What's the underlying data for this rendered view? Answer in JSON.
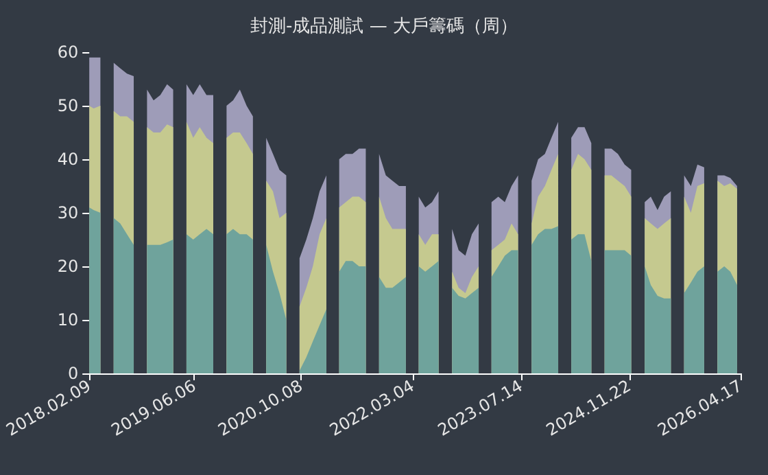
{
  "chart_data": {
    "type": "area",
    "title": "封測-成品測試 — 大戶籌碼（周）",
    "stacked": true,
    "grid": false,
    "x": [
      "2018-02-09",
      "2018-03",
      "2018-04",
      "2018-05",
      "2018-06",
      "2018-07",
      "2018-08",
      "2018-09",
      "2018-10",
      "2018-11",
      "2018-12",
      "2019-01",
      "2019-02",
      "2019-03",
      "2019-04",
      "2019-05",
      "2019-06",
      "2019-07",
      "2019-08",
      "2019-09",
      "2019-10",
      "2019-11",
      "2019-12",
      "2020-01",
      "2020-02",
      "2020-03",
      "2020-04",
      "2020-05",
      "2020-06",
      "2020-07",
      "2020-08",
      "2020-09",
      "2020-10",
      "2020-11",
      "2020-12",
      "2021-01",
      "2021-02",
      "2021-03",
      "2021-04",
      "2021-05",
      "2021-06",
      "2021-07",
      "2021-08",
      "2021-09",
      "2021-10",
      "2021-11",
      "2021-12",
      "2022-01",
      "2022-02",
      "2022-03",
      "2022-04",
      "2022-05",
      "2022-06",
      "2022-07",
      "2022-08",
      "2022-09",
      "2022-10",
      "2022-11",
      "2022-12",
      "2023-01",
      "2023-02",
      "2023-03",
      "2023-04",
      "2023-05",
      "2023-06",
      "2023-07",
      "2023-08",
      "2023-09",
      "2023-10",
      "2023-11",
      "2023-12",
      "2024-01",
      "2024-02",
      "2024-03",
      "2024-04",
      "2024-05",
      "2024-06",
      "2024-07",
      "2024-08",
      "2024-09",
      "2024-10",
      "2024-11",
      "2024-12",
      "2025-01",
      "2025-02",
      "2025-03",
      "2025-04",
      "2025-05",
      "2025-06",
      "2025-07",
      "2025-08",
      "2025-09",
      "2025-10",
      "2025-11",
      "2025-12",
      "2026-01",
      "2026-02",
      "2026-03",
      "2026-04"
    ],
    "series": [
      {
        "color": "#6fa39c",
        "values": [
          31,
          30.5,
          30,
          null,
          29,
          28,
          26,
          24,
          null,
          24,
          24,
          24,
          24.5,
          25,
          null,
          26,
          25,
          26,
          27,
          26,
          null,
          26,
          27,
          26,
          26,
          25,
          null,
          24,
          19,
          15,
          10,
          null,
          0.5,
          3,
          6,
          9,
          12,
          null,
          19,
          21,
          21,
          20,
          20,
          null,
          18,
          16,
          16,
          17,
          18,
          null,
          20,
          19,
          20,
          21,
          null,
          16,
          14.5,
          14,
          15,
          16,
          null,
          18,
          20,
          22,
          23,
          23,
          null,
          24,
          26,
          27,
          27,
          27.5,
          null,
          25,
          26,
          26,
          21,
          null,
          23,
          23,
          23,
          23,
          22,
          null,
          20,
          16.5,
          14.5,
          14,
          14,
          null,
          15,
          17,
          19,
          20,
          null,
          19,
          20,
          19,
          16.5
        ]
      },
      {
        "color": "#c5c98f",
        "values": [
          19,
          19,
          20,
          null,
          20,
          20,
          22,
          23,
          null,
          22,
          21,
          21,
          22,
          21,
          null,
          21,
          19,
          20,
          17,
          17,
          null,
          18,
          18,
          19,
          17,
          16,
          null,
          12,
          15,
          14,
          20,
          null,
          12,
          13,
          14,
          17,
          17,
          null,
          12,
          11,
          12,
          13,
          12,
          null,
          15,
          13,
          11,
          10,
          9,
          null,
          6,
          5,
          6,
          5,
          null,
          3,
          1.5,
          1,
          3,
          4,
          null,
          5,
          4,
          3,
          5,
          3,
          null,
          4,
          7,
          8,
          11,
          13.5,
          null,
          13,
          15,
          14,
          17,
          null,
          14,
          14,
          13,
          12,
          11,
          null,
          9,
          11.5,
          12.5,
          14,
          15,
          null,
          18,
          13,
          16,
          15.5,
          null,
          17,
          15,
          16.5,
          18
        ]
      },
      {
        "color": "#9e9cb8",
        "values": [
          9,
          9.5,
          9,
          null,
          9,
          9,
          8,
          8.5,
          null,
          7,
          6,
          7,
          7.5,
          7,
          null,
          7,
          8,
          8,
          8,
          9,
          null,
          6,
          6,
          8,
          7,
          7,
          null,
          8,
          7,
          9,
          7,
          null,
          9,
          9,
          9,
          8,
          8,
          null,
          9,
          9,
          8,
          9,
          10,
          null,
          8,
          8,
          9,
          8,
          8,
          null,
          7,
          7,
          6,
          8,
          null,
          8,
          7,
          7,
          8,
          8,
          null,
          9,
          9,
          7,
          7,
          11,
          null,
          8,
          7,
          6,
          6,
          6,
          null,
          6,
          5,
          6,
          5,
          null,
          5,
          5,
          5,
          4,
          5,
          null,
          3,
          5,
          3.5,
          5,
          5,
          null,
          4,
          5,
          4,
          3,
          null,
          1,
          2,
          1,
          0.5
        ]
      }
    ],
    "xlim": [
      "2018-02-09",
      "2026-04-17"
    ],
    "xticks": [
      {
        "value": "2018-02-09",
        "label": "2018.02.09"
      },
      {
        "value": "2019-06-06",
        "label": "2019.06.06"
      },
      {
        "value": "2020-10-08",
        "label": "2020.10.08"
      },
      {
        "value": "2022-03-04",
        "label": "2022.03.04"
      },
      {
        "value": "2023-07-14",
        "label": "2023.07.14"
      },
      {
        "value": "2024-11-22",
        "label": "2024.11.22"
      },
      {
        "value": "2026-04-17",
        "label": "2026.04.17"
      }
    ],
    "ylim": [
      0,
      60
    ],
    "yticks": [
      0,
      10,
      20,
      30,
      40,
      50,
      60
    ]
  }
}
